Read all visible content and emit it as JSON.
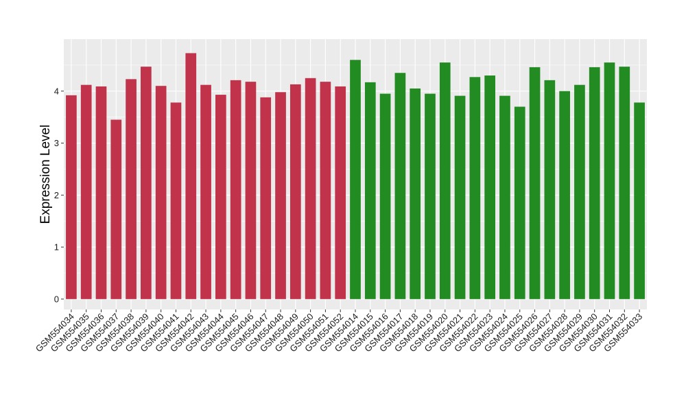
{
  "chart_data": {
    "type": "bar",
    "title": "",
    "xlabel": "",
    "ylabel": "Expression Level",
    "ylim": [
      -0.2,
      5.0
    ],
    "yticks": [
      0,
      1,
      2,
      3,
      4
    ],
    "grid": true,
    "legend": "none",
    "panel_background": "#ebebeb",
    "gridline_color": "#ffffff",
    "categories": [
      "GSM554034",
      "GSM554035",
      "GSM554036",
      "GSM554037",
      "GSM554038",
      "GSM554039",
      "GSM554040",
      "GSM554041",
      "GSM554042",
      "GSM554043",
      "GSM554044",
      "GSM554045",
      "GSM554046",
      "GSM554047",
      "GSM554048",
      "GSM554049",
      "GSM554050",
      "GSM554051",
      "GSM554052",
      "GSM554014",
      "GSM554015",
      "GSM554016",
      "GSM554017",
      "GSM554018",
      "GSM554019",
      "GSM554020",
      "GSM554021",
      "GSM554022",
      "GSM554023",
      "GSM554024",
      "GSM554025",
      "GSM554026",
      "GSM554027",
      "GSM554028",
      "GSM554029",
      "GSM554030",
      "GSM554031",
      "GSM554032",
      "GSM554033"
    ],
    "values": [
      3.92,
      4.12,
      4.09,
      3.45,
      4.23,
      4.47,
      4.1,
      3.78,
      4.73,
      4.12,
      3.93,
      4.21,
      4.18,
      3.88,
      3.98,
      4.13,
      4.25,
      4.18,
      4.09,
      4.6,
      4.17,
      3.95,
      4.35,
      4.05,
      3.95,
      4.55,
      3.91,
      4.27,
      4.3,
      3.91,
      3.7,
      4.46,
      4.21,
      4.0,
      4.12,
      4.46,
      4.55,
      4.47,
      3.78
    ],
    "bar_colors": [
      "#c0334b",
      "#c0334b",
      "#c0334b",
      "#c0334b",
      "#c0334b",
      "#c0334b",
      "#c0334b",
      "#c0334b",
      "#c0334b",
      "#c0334b",
      "#c0334b",
      "#c0334b",
      "#c0334b",
      "#c0334b",
      "#c0334b",
      "#c0334b",
      "#c0334b",
      "#c0334b",
      "#c0334b",
      "#228b22",
      "#228b22",
      "#228b22",
      "#228b22",
      "#228b22",
      "#228b22",
      "#228b22",
      "#228b22",
      "#228b22",
      "#228b22",
      "#228b22",
      "#228b22",
      "#228b22",
      "#228b22",
      "#228b22",
      "#228b22",
      "#228b22",
      "#228b22",
      "#228b22",
      "#228b22"
    ]
  }
}
